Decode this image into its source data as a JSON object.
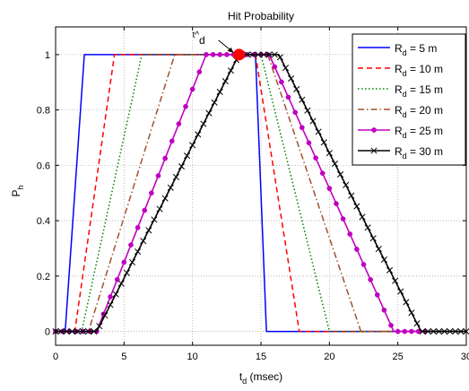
{
  "chart_data": {
    "type": "line",
    "title": "Hit Probability",
    "xlabel": "t_d (msec)",
    "ylabel": "P_h",
    "xlim": [
      0,
      30
    ],
    "ylim": [
      -0.05,
      1.1
    ],
    "x_ticks": [
      0,
      5,
      10,
      15,
      20,
      25,
      30
    ],
    "y_ticks": [
      0,
      0.2,
      0.4,
      0.6,
      0.8,
      1
    ],
    "x_tick_labels": [
      "0",
      "5",
      "10",
      "15",
      "20",
      "25",
      "30"
    ],
    "y_tick_labels": [
      "0",
      "0.2",
      "0.4",
      "0.6",
      "0.8",
      "1"
    ],
    "grid": true,
    "grid_style": "dotted",
    "legend_position": "top-right",
    "annotation": {
      "label": "t^d",
      "x": 13.4,
      "y": 1.0,
      "marker_color": "#ff0000"
    },
    "series": [
      {
        "name": "R_d = 5 m",
        "legend_base": "R",
        "legend_sub": "d",
        "legend_rest": " =  5 m",
        "color": "#0000ff",
        "dash": "",
        "marker": "none",
        "points": [
          [
            0,
            0
          ],
          [
            0.7,
            0
          ],
          [
            2.1,
            1
          ],
          [
            14.6,
            1
          ],
          [
            15.4,
            0
          ],
          [
            30,
            0
          ]
        ]
      },
      {
        "name": "R_d = 10 m",
        "legend_base": "R",
        "legend_sub": "d",
        "legend_rest": " = 10 m",
        "color": "#ff0000",
        "dash": "6,4",
        "marker": "none",
        "points": [
          [
            0,
            0
          ],
          [
            1.4,
            0
          ],
          [
            4.3,
            1
          ],
          [
            14.6,
            1
          ],
          [
            17.8,
            0
          ],
          [
            30,
            0
          ]
        ]
      },
      {
        "name": "R_d = 15 m",
        "legend_base": "R",
        "legend_sub": "d",
        "legend_rest": " = 15 m",
        "color": "#008000",
        "dash": "1.5,2.5",
        "marker": "none",
        "points": [
          [
            0,
            0
          ],
          [
            1.9,
            0
          ],
          [
            6.3,
            1
          ],
          [
            15,
            1
          ],
          [
            20,
            0
          ],
          [
            30,
            0
          ]
        ]
      },
      {
        "name": "R_d = 20 m",
        "legend_base": "R",
        "legend_sub": "d",
        "legend_rest": " = 20 m",
        "color": "#a0522d",
        "dash": "7,3,1.5,3",
        "marker": "none",
        "points": [
          [
            0,
            0
          ],
          [
            2.4,
            0
          ],
          [
            8.7,
            1
          ],
          [
            15.5,
            1
          ],
          [
            22.3,
            0
          ],
          [
            30,
            0
          ]
        ]
      },
      {
        "name": "R_d = 25 m",
        "legend_base": "R",
        "legend_sub": "d",
        "legend_rest": " = 25 m",
        "color": "#c000c0",
        "dash": "",
        "marker": "dot",
        "points": [
          [
            0,
            0
          ],
          [
            3,
            0
          ],
          [
            11,
            1
          ],
          [
            15.6,
            1
          ],
          [
            24.7,
            0
          ],
          [
            27,
            0
          ]
        ]
      },
      {
        "name": "R_d = 30 m",
        "legend_base": "R",
        "legend_sub": "d",
        "legend_rest": " = 30 m",
        "color": "#000000",
        "dash": "",
        "marker": "x",
        "points": [
          [
            0,
            0
          ],
          [
            3,
            0
          ],
          [
            13.4,
            1
          ],
          [
            16.3,
            1
          ],
          [
            26.7,
            0
          ],
          [
            30,
            0
          ]
        ]
      }
    ]
  }
}
